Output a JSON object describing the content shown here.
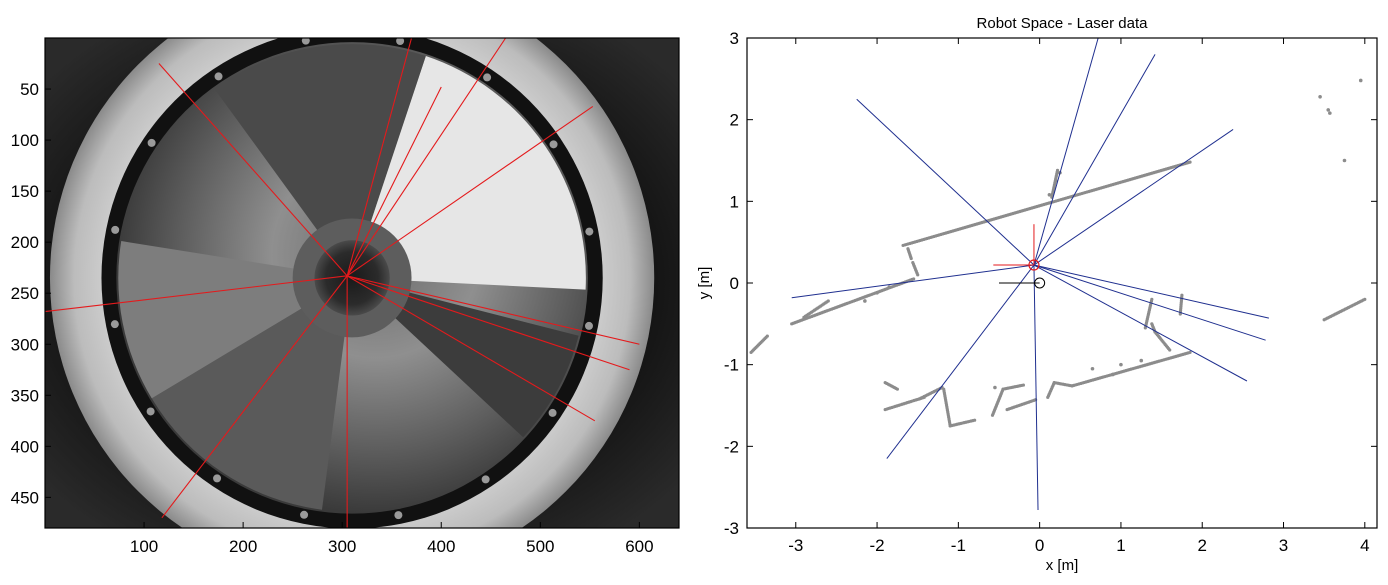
{
  "chart_data": [
    {
      "type": "image-plot",
      "title": "",
      "xlabel": "",
      "ylabel": "",
      "xlim": [
        0,
        640
      ],
      "ylim": [
        480,
        0
      ],
      "x_ticks": [
        100,
        200,
        300,
        400,
        500,
        600
      ],
      "y_ticks": [
        50,
        100,
        150,
        200,
        250,
        300,
        350,
        400,
        450
      ],
      "image": {
        "kind": "omnidirectional camera frame (grayscale)",
        "mirror_center": [
          310,
          235
        ],
        "mirror_outer_radius": 250,
        "black_ring_radius": 245,
        "inner_hole_radius": 38
      },
      "ray_color": "#e41a1c",
      "rays": [
        {
          "from": [
            305,
            233
          ],
          "to": [
            115,
            25
          ]
        },
        {
          "from": [
            305,
            233
          ],
          "to": [
            370,
            0
          ]
        },
        {
          "from": [
            305,
            233
          ],
          "to": [
            400,
            48
          ]
        },
        {
          "from": [
            305,
            233
          ],
          "to": [
            465,
            0
          ]
        },
        {
          "from": [
            305,
            233
          ],
          "to": [
            553,
            67
          ]
        },
        {
          "from": [
            305,
            233
          ],
          "to": [
            600,
            300
          ]
        },
        {
          "from": [
            305,
            233
          ],
          "to": [
            590,
            325
          ]
        },
        {
          "from": [
            305,
            233
          ],
          "to": [
            555,
            375
          ]
        },
        {
          "from": [
            305,
            233
          ],
          "to": [
            305,
            480
          ]
        },
        {
          "from": [
            305,
            233
          ],
          "to": [
            118,
            470
          ]
        },
        {
          "from": [
            305,
            233
          ],
          "to": [
            0,
            268
          ]
        }
      ]
    },
    {
      "type": "scatter",
      "title": "Robot Space - Laser data",
      "xlabel": "x [m]",
      "ylabel": "y [m]",
      "xlim": [
        -3.6,
        4.15
      ],
      "ylim": [
        -3,
        3
      ],
      "x_ticks": [
        -3,
        -2,
        -1,
        0,
        1,
        2,
        3,
        4
      ],
      "y_ticks": [
        -3,
        -2,
        -1,
        0,
        1,
        2,
        3
      ],
      "grid": false,
      "point_color": "#8c8c8c",
      "ray_color": "#1f2f8f",
      "marker_color": "#e41a1c",
      "robot_position": [
        0,
        0
      ],
      "camera_position": [
        -0.07,
        0.22
      ],
      "rays": [
        {
          "from": [
            -0.07,
            0.22
          ],
          "to": [
            0.72,
            3.0
          ]
        },
        {
          "from": [
            -0.07,
            0.22
          ],
          "to": [
            1.42,
            2.8
          ]
        },
        {
          "from": [
            -0.07,
            0.22
          ],
          "to": [
            2.38,
            1.88
          ]
        },
        {
          "from": [
            -0.07,
            0.22
          ],
          "to": [
            2.82,
            -0.43
          ]
        },
        {
          "from": [
            -0.07,
            0.22
          ],
          "to": [
            2.78,
            -0.7
          ]
        },
        {
          "from": [
            -0.07,
            0.22
          ],
          "to": [
            2.55,
            -1.2
          ]
        },
        {
          "from": [
            -0.07,
            0.22
          ],
          "to": [
            -0.02,
            -2.78
          ]
        },
        {
          "from": [
            -0.07,
            0.22
          ],
          "to": [
            -1.88,
            -2.15
          ]
        },
        {
          "from": [
            -0.07,
            0.22
          ],
          "to": [
            -3.05,
            -0.18
          ]
        },
        {
          "from": [
            -0.07,
            0.22
          ],
          "to": [
            -2.25,
            2.25
          ]
        }
      ],
      "point_segments": [
        {
          "from": [
            -1.68,
            0.46
          ],
          "to": [
            1.85,
            1.48
          ]
        },
        {
          "from": [
            -1.56,
            0.25
          ],
          "to": [
            -1.5,
            0.1
          ]
        },
        {
          "from": [
            -1.62,
            0.42
          ],
          "to": [
            -1.58,
            0.3
          ]
        },
        {
          "from": [
            0.15,
            1.05
          ],
          "to": [
            0.22,
            1.38
          ]
        },
        {
          "from": [
            -3.05,
            -0.5
          ],
          "to": [
            -1.55,
            0.05
          ]
        },
        {
          "from": [
            -1.18,
            -1.3
          ],
          "to": [
            -1.1,
            -1.75
          ]
        },
        {
          "from": [
            -1.1,
            -1.75
          ],
          "to": [
            -0.8,
            -1.68
          ]
        },
        {
          "from": [
            -1.48,
            -1.42
          ],
          "to": [
            -1.2,
            -1.28
          ]
        },
        {
          "from": [
            -1.9,
            -1.55
          ],
          "to": [
            -1.42,
            -1.4
          ]
        },
        {
          "from": [
            -1.9,
            -1.22
          ],
          "to": [
            -1.75,
            -1.3
          ]
        },
        {
          "from": [
            -0.58,
            -1.62
          ],
          "to": [
            -0.45,
            -1.3
          ]
        },
        {
          "from": [
            -0.45,
            -1.3
          ],
          "to": [
            -0.2,
            -1.25
          ]
        },
        {
          "from": [
            -0.4,
            -1.55
          ],
          "to": [
            -0.05,
            -1.43
          ]
        },
        {
          "from": [
            0.1,
            -1.4
          ],
          "to": [
            0.18,
            -1.22
          ]
        },
        {
          "from": [
            0.18,
            -1.22
          ],
          "to": [
            0.4,
            -1.26
          ]
        },
        {
          "from": [
            0.4,
            -1.26
          ],
          "to": [
            1.85,
            -0.85
          ]
        },
        {
          "from": [
            1.42,
            -0.6
          ],
          "to": [
            1.38,
            -0.5
          ]
        },
        {
          "from": [
            1.42,
            -0.6
          ],
          "to": [
            1.6,
            -0.82
          ]
        },
        {
          "from": [
            1.3,
            -0.55
          ],
          "to": [
            1.38,
            -0.2
          ]
        },
        {
          "from": [
            1.73,
            -0.38
          ],
          "to": [
            1.75,
            -0.15
          ]
        },
        {
          "from": [
            3.5,
            -0.45
          ],
          "to": [
            4.0,
            -0.2
          ]
        },
        {
          "from": [
            -3.55,
            -0.85
          ],
          "to": [
            -3.35,
            -0.65
          ]
        },
        {
          "from": [
            -2.9,
            -0.42
          ],
          "to": [
            -2.6,
            -0.22
          ]
        }
      ],
      "isolated_points": [
        [
          0.12,
          1.08
        ],
        [
          0.2,
          1.25
        ],
        [
          0.25,
          1.35
        ],
        [
          3.45,
          2.28
        ],
        [
          3.55,
          2.12
        ],
        [
          3.57,
          2.08
        ],
        [
          3.75,
          1.5
        ],
        [
          3.95,
          2.48
        ],
        [
          -2.15,
          -0.22
        ],
        [
          -2.0,
          -0.12
        ],
        [
          -1.85,
          -0.05
        ],
        [
          1.0,
          -1.0
        ],
        [
          0.9,
          -1.12
        ],
        [
          -0.55,
          -1.28
        ],
        [
          0.65,
          -1.05
        ],
        [
          1.25,
          -0.95
        ]
      ]
    }
  ]
}
